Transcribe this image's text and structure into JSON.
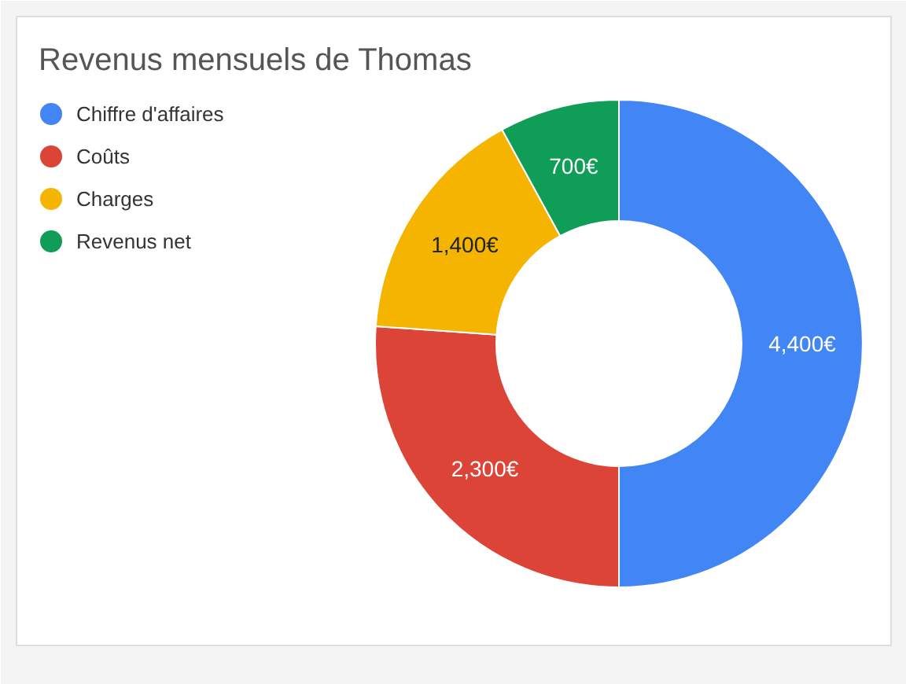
{
  "chart_data": {
    "type": "donut",
    "title": "Revenus mensuels de Thomas",
    "categories": [
      "Chiffre d'affaires",
      "Coûts",
      "Charges",
      "Revenus net"
    ],
    "values": [
      4400,
      2300,
      1400,
      700
    ],
    "colors": [
      "#4285f4",
      "#db4437",
      "#f4b400",
      "#0f9d58"
    ],
    "value_labels": [
      "4,400€",
      "2,300€",
      "1,400€",
      "700€"
    ],
    "legend": "top left"
  }
}
